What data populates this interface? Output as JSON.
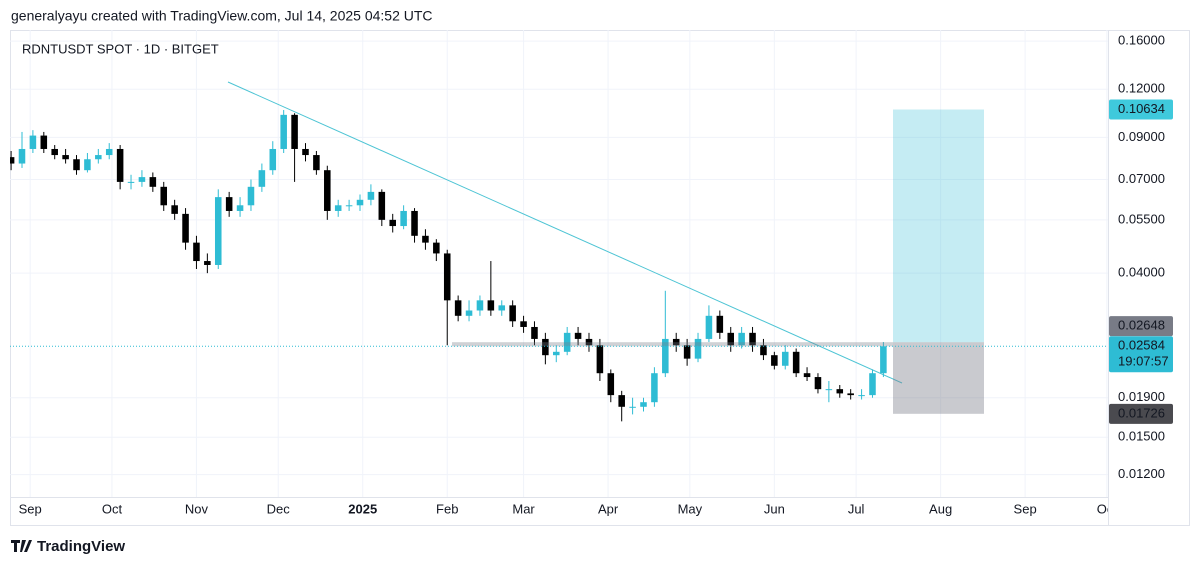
{
  "header": {
    "credit": "generalyayu created with TradingView.com, Jul 14, 2025 04:52 UTC",
    "brand": "TradingView"
  },
  "chart_data": {
    "type": "candlestick",
    "title": "RDNTUSDT SPOT · 1D · BITGET",
    "open": [
      0.08,
      0.077,
      0.084,
      0.091,
      0.084,
      0.081,
      0.079,
      0.074,
      0.079,
      0.081,
      0.084,
      0.069,
      0.069,
      0.071,
      0.067,
      0.06,
      0.057,
      0.048,
      0.043,
      0.042,
      0.063,
      0.058,
      0.06,
      0.067,
      0.074,
      0.084,
      0.103,
      0.084,
      0.081,
      0.074,
      0.058,
      0.06,
      0.06,
      0.062,
      0.065,
      0.055,
      0.053,
      0.058,
      0.05,
      0.048,
      0.045,
      0.034,
      0.031,
      0.032,
      0.034,
      0.032,
      0.033,
      0.03,
      0.029,
      0.027,
      0.0245,
      0.025,
      0.028,
      0.027,
      0.026,
      0.022,
      0.0193,
      0.018,
      0.018,
      0.0185,
      0.022,
      0.027,
      0.026,
      0.024,
      0.027,
      0.031,
      0.028,
      0.026,
      0.028,
      0.026,
      0.0245,
      0.023,
      0.025,
      0.022,
      0.0215,
      0.02,
      0.02,
      0.0195,
      0.0193,
      0.0193,
      0.022
    ],
    "high": [
      0.083,
      0.093,
      0.094,
      0.093,
      0.086,
      0.084,
      0.081,
      0.082,
      0.084,
      0.087,
      0.086,
      0.072,
      0.074,
      0.073,
      0.069,
      0.062,
      0.059,
      0.05,
      0.045,
      0.066,
      0.065,
      0.063,
      0.07,
      0.077,
      0.088,
      0.106,
      0.104,
      0.087,
      0.083,
      0.076,
      0.062,
      0.062,
      0.064,
      0.068,
      0.066,
      0.057,
      0.06,
      0.059,
      0.052,
      0.049,
      0.046,
      0.035,
      0.034,
      0.035,
      0.043,
      0.034,
      0.034,
      0.031,
      0.03,
      0.028,
      0.026,
      0.029,
      0.029,
      0.028,
      0.027,
      0.0225,
      0.0198,
      0.019,
      0.019,
      0.0228,
      0.036,
      0.028,
      0.027,
      0.028,
      0.033,
      0.032,
      0.029,
      0.029,
      0.029,
      0.027,
      0.025,
      0.026,
      0.0255,
      0.0228,
      0.022,
      0.021,
      0.0205,
      0.02,
      0.02,
      0.0225,
      0.0265
    ],
    "low": [
      0.074,
      0.075,
      0.082,
      0.082,
      0.079,
      0.077,
      0.072,
      0.073,
      0.077,
      0.079,
      0.066,
      0.066,
      0.067,
      0.065,
      0.058,
      0.055,
      0.046,
      0.041,
      0.04,
      0.041,
      0.056,
      0.056,
      0.058,
      0.065,
      0.072,
      0.082,
      0.069,
      0.078,
      0.072,
      0.055,
      0.056,
      0.058,
      0.058,
      0.06,
      0.053,
      0.051,
      0.052,
      0.048,
      0.046,
      0.043,
      0.026,
      0.03,
      0.03,
      0.031,
      0.031,
      0.031,
      0.029,
      0.028,
      0.026,
      0.0232,
      0.0235,
      0.0245,
      0.026,
      0.025,
      0.021,
      0.0185,
      0.0165,
      0.0172,
      0.0175,
      0.018,
      0.0215,
      0.025,
      0.023,
      0.0235,
      0.0265,
      0.027,
      0.025,
      0.0255,
      0.025,
      0.0238,
      0.0225,
      0.0225,
      0.0215,
      0.021,
      0.0195,
      0.0185,
      0.019,
      0.0188,
      0.0188,
      0.019,
      0.0215
    ],
    "close": [
      0.077,
      0.084,
      0.091,
      0.084,
      0.081,
      0.079,
      0.074,
      0.079,
      0.081,
      0.084,
      0.069,
      0.069,
      0.071,
      0.067,
      0.06,
      0.057,
      0.048,
      0.043,
      0.042,
      0.063,
      0.058,
      0.06,
      0.067,
      0.074,
      0.084,
      0.103,
      0.084,
      0.081,
      0.074,
      0.058,
      0.06,
      0.06,
      0.062,
      0.065,
      0.055,
      0.053,
      0.058,
      0.05,
      0.048,
      0.045,
      0.034,
      0.031,
      0.032,
      0.034,
      0.032,
      0.033,
      0.03,
      0.029,
      0.027,
      0.0245,
      0.025,
      0.028,
      0.027,
      0.026,
      0.022,
      0.0193,
      0.018,
      0.018,
      0.0185,
      0.022,
      0.027,
      0.026,
      0.024,
      0.027,
      0.031,
      0.028,
      0.026,
      0.028,
      0.026,
      0.0245,
      0.023,
      0.025,
      0.022,
      0.0215,
      0.02,
      0.02,
      0.0195,
      0.0193,
      0.0193,
      0.022,
      0.02584
    ],
    "up_color": "#2ebcd4",
    "down_color": "#000000",
    "xlim": [
      -0.1,
      100.6
    ],
    "xticks": [
      {
        "value": 1.75,
        "label": "Sep"
      },
      {
        "value": 9.25,
        "label": "Oct"
      },
      {
        "value": 17,
        "label": "Nov"
      },
      {
        "value": 24.5,
        "label": "Dec"
      },
      {
        "value": 32.25,
        "label": "2025"
      },
      {
        "value": 40,
        "label": "Feb"
      },
      {
        "value": 47,
        "label": "Mar"
      },
      {
        "value": 54.75,
        "label": "Apr"
      },
      {
        "value": 62.25,
        "label": "May"
      },
      {
        "value": 70,
        "label": "Jun"
      },
      {
        "value": 77.5,
        "label": "Jul"
      },
      {
        "value": 85.25,
        "label": "Aug"
      },
      {
        "value": 93,
        "label": "Sep"
      },
      {
        "value": 100.5,
        "label": "Oct"
      }
    ],
    "log_scale": true,
    "ylim": [
      0.0105,
      0.171
    ],
    "yticks": [
      {
        "value": 0.16,
        "label": "0.16000"
      },
      {
        "value": 0.12,
        "label": "0.12000"
      },
      {
        "value": 0.09,
        "label": "0.09000"
      },
      {
        "value": 0.07,
        "label": "0.07000"
      },
      {
        "value": 0.055,
        "label": "0.05500"
      },
      {
        "value": 0.04,
        "label": "0.04000"
      },
      {
        "value": 0.019,
        "label": "0.01900"
      },
      {
        "value": 0.015,
        "label": "0.01500"
      },
      {
        "value": 0.012,
        "label": "0.01200"
      }
    ],
    "grid": true,
    "last_price": {
      "value": 0.02584,
      "countdown": "19:07:57"
    },
    "position": {
      "target": 0.10634,
      "entry": 0.02648,
      "stop": 0.01726
    }
  }
}
